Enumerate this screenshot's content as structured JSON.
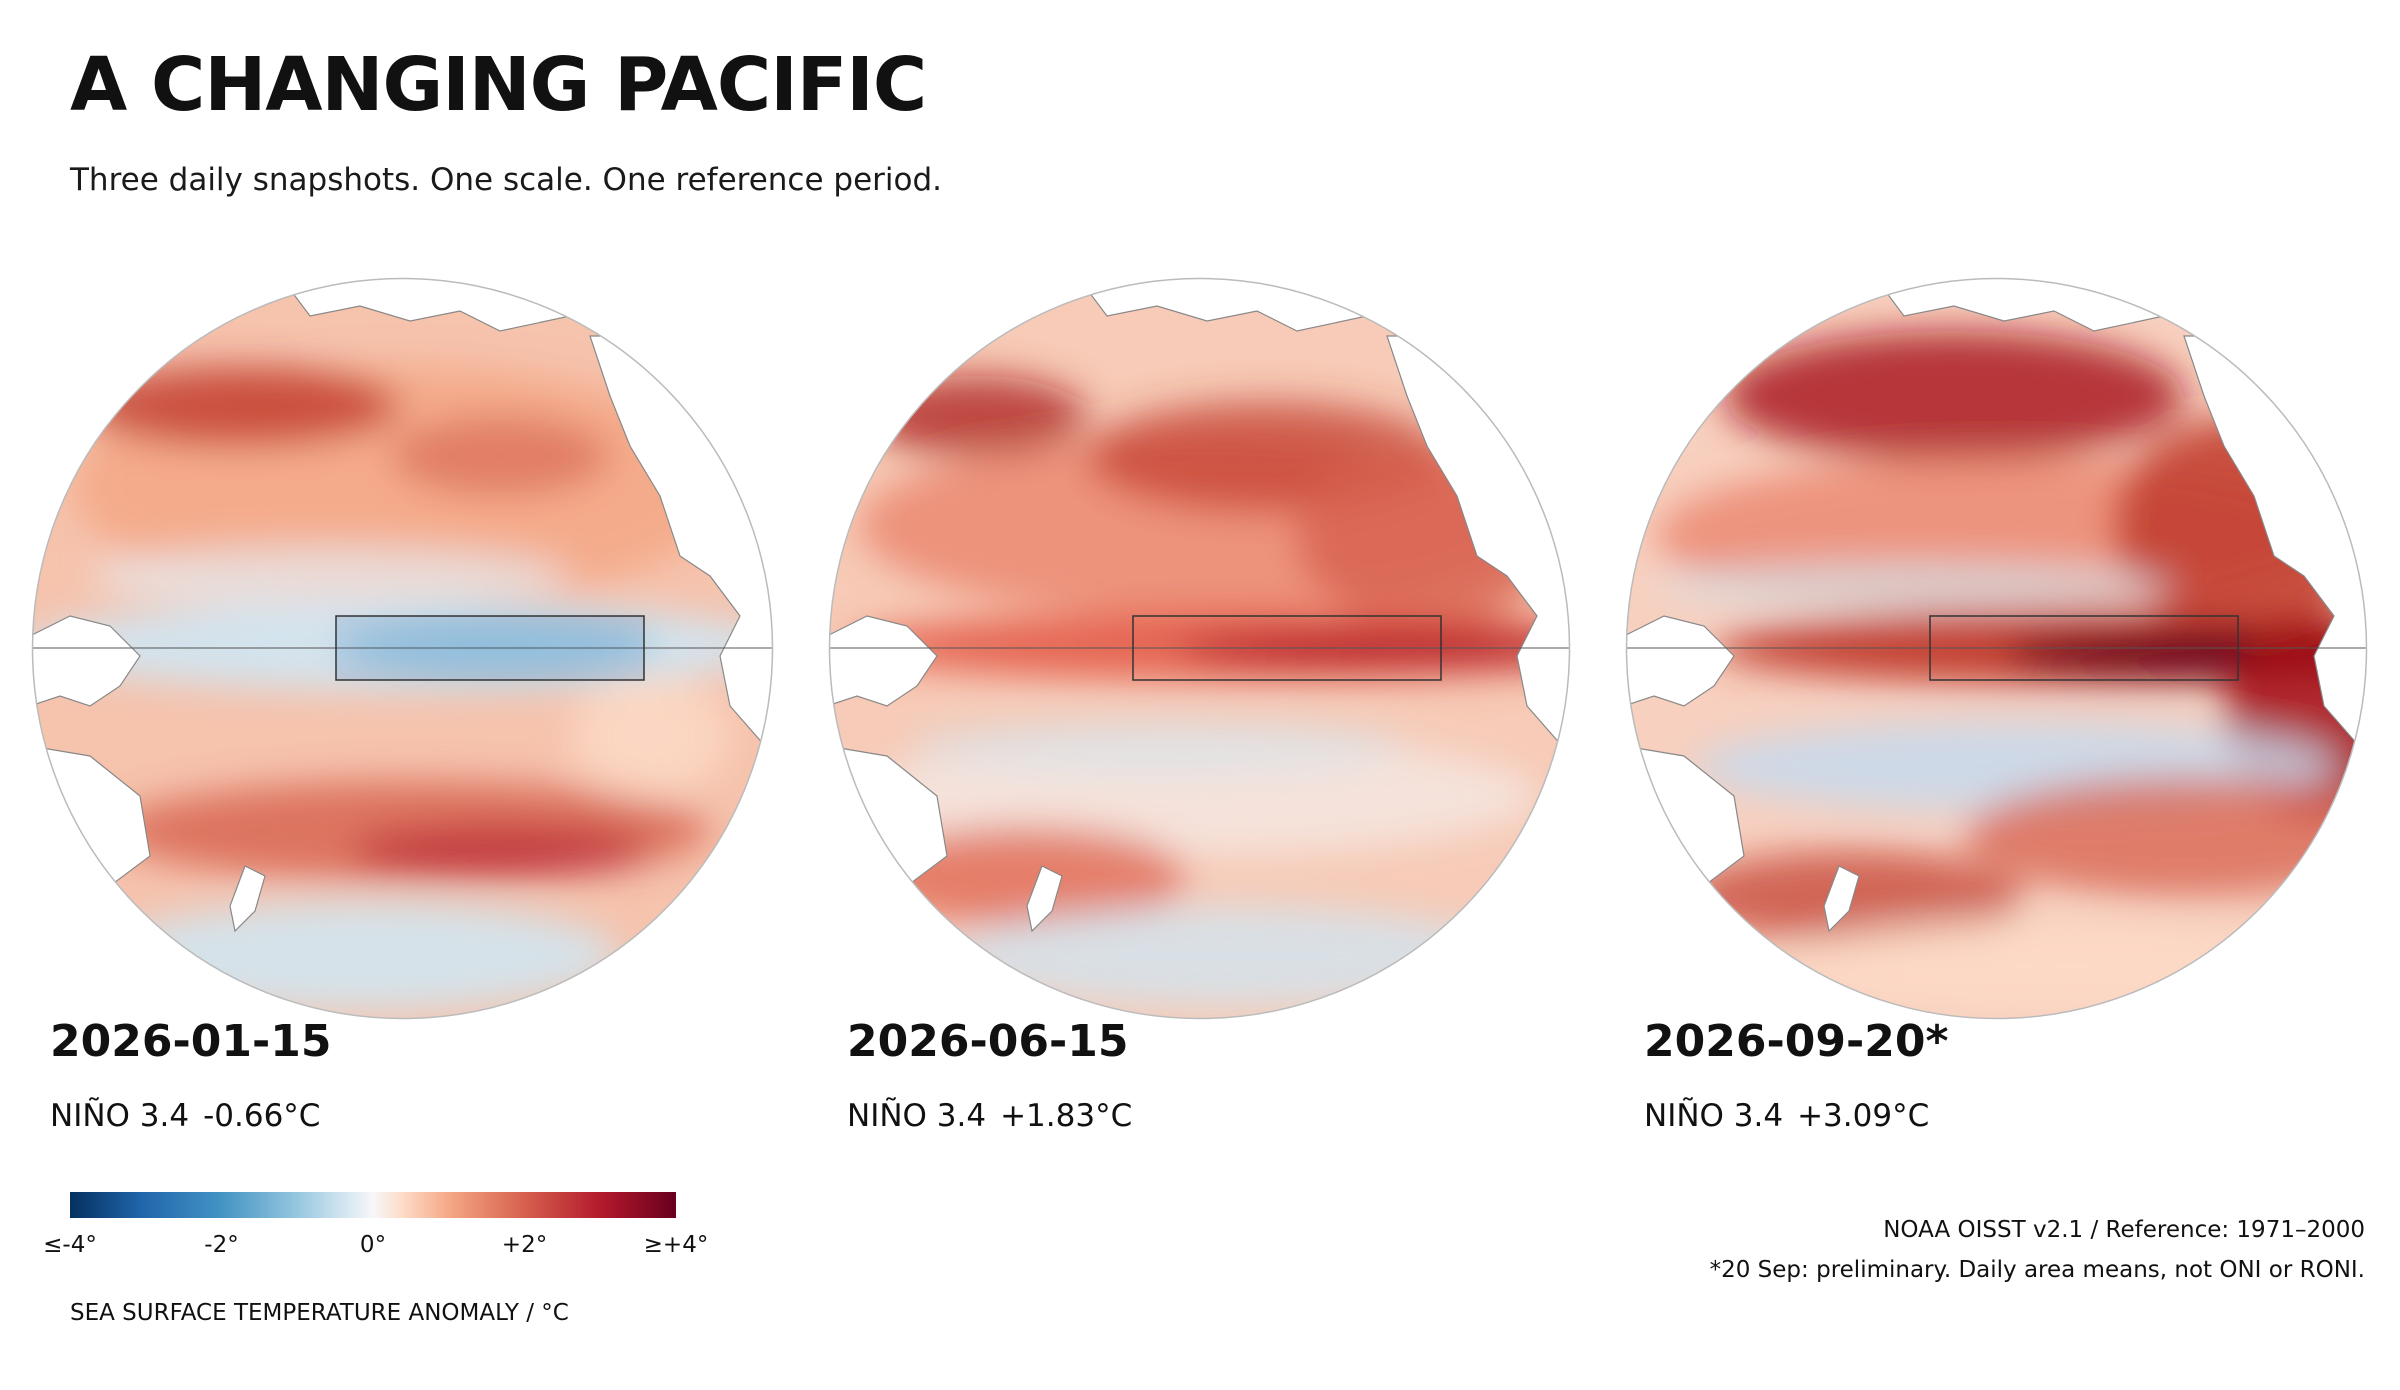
{
  "title": "A CHANGING PACIFIC",
  "subtitle": "Three daily snapshots. One scale. One reference period.",
  "panels": [
    {
      "date": "2026-01-15",
      "nino_label": "NIÑO 3.4",
      "nino_value": "-0.66°C",
      "state": "neutral-cool"
    },
    {
      "date": "2026-06-15",
      "nino_label": "NIÑO 3.4",
      "nino_value": "+1.83°C",
      "state": "warming"
    },
    {
      "date": "2026-09-20*",
      "nino_label": "NIÑO 3.4",
      "nino_value": "+3.09°C",
      "state": "strong-el-nino"
    }
  ],
  "legend": {
    "title": "SEA SURFACE TEMPERATURE ANOMALY / °C",
    "ticks": [
      "≤-4°",
      "-2°",
      "0°",
      "+2°",
      "≥+4°"
    ],
    "range": [
      -4,
      4
    ],
    "colors": [
      "#053061",
      "#2166ac",
      "#92c5de",
      "#f7f7f7",
      "#f4a582",
      "#d6604d",
      "#b2182b",
      "#67001f"
    ]
  },
  "source": {
    "line1": "NOAA OISST v2.1 / Reference: 1971–2000",
    "line2": "*20 Sep: preliminary. Daily area means, not ONI or RONI."
  }
}
